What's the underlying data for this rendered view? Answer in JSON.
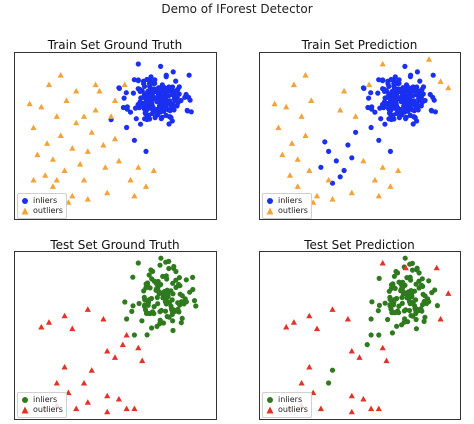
{
  "figure": {
    "title": "Demo of IForest Detector"
  },
  "colors": {
    "train_inlier": "#1a2ff0",
    "test_inlier": "#2f7a1f",
    "outlier_train": "#f2a43a",
    "outlier_test": "#e0342a",
    "frame": "#333333"
  },
  "chart_data": [
    {
      "type": "scatter",
      "title": "Train Set Ground Truth",
      "xlabel": "",
      "ylabel": "",
      "legend": {
        "placement": "bottom-left",
        "entries": [
          "inliers",
          "outliers"
        ]
      },
      "series": [
        {
          "name": "inliers",
          "marker": "circle",
          "cluster": {
            "cx": 0.72,
            "cy": 0.73,
            "sx": 0.07,
            "sy": 0.075,
            "n": 200,
            "seed": 11
          },
          "points": [
            [
              0.62,
              0.95
            ],
            [
              0.86,
              0.74
            ],
            [
              0.48,
              0.6
            ],
            [
              0.56,
              0.55
            ],
            [
              0.6,
              0.47
            ],
            [
              0.66,
              0.4
            ],
            [
              0.8,
              0.9
            ],
            [
              0.52,
              0.8
            ]
          ]
        },
        {
          "name": "outliers",
          "marker": "triangle",
          "points": [
            [
              0.08,
              0.55
            ],
            [
              0.12,
              0.68
            ],
            [
              0.15,
              0.45
            ],
            [
              0.2,
              0.62
            ],
            [
              0.18,
              0.35
            ],
            [
              0.22,
              0.5
            ],
            [
              0.25,
              0.72
            ],
            [
              0.28,
              0.42
            ],
            [
              0.3,
              0.58
            ],
            [
              0.1,
              0.38
            ],
            [
              0.14,
              0.25
            ],
            [
              0.18,
              0.18
            ],
            [
              0.24,
              0.28
            ],
            [
              0.32,
              0.32
            ],
            [
              0.34,
              0.22
            ],
            [
              0.38,
              0.52
            ],
            [
              0.4,
              0.66
            ],
            [
              0.42,
              0.78
            ],
            [
              0.44,
              0.44
            ],
            [
              0.48,
              0.62
            ],
            [
              0.28,
              0.12
            ],
            [
              0.36,
              0.1
            ],
            [
              0.45,
              0.3
            ],
            [
              0.52,
              0.34
            ],
            [
              0.58,
              0.22
            ],
            [
              0.62,
              0.3
            ],
            [
              0.66,
              0.18
            ],
            [
              0.6,
              0.12
            ],
            [
              0.06,
              0.7
            ],
            [
              0.16,
              0.82
            ],
            [
              0.22,
              0.88
            ],
            [
              0.4,
              0.82
            ],
            [
              0.5,
              0.72
            ],
            [
              0.55,
              0.82
            ],
            [
              0.34,
              0.62
            ],
            [
              0.26,
              0.08
            ],
            [
              0.2,
              0.22
            ],
            [
              0.12,
              0.1
            ],
            [
              0.7,
              0.28
            ],
            [
              0.46,
              0.14
            ],
            [
              0.5,
              0.48
            ],
            [
              0.36,
              0.4
            ],
            [
              0.3,
              0.78
            ],
            [
              0.08,
              0.22
            ]
          ]
        }
      ]
    },
    {
      "type": "scatter",
      "title": "Train Set Prediction",
      "xlabel": "",
      "ylabel": "",
      "legend": {
        "placement": "bottom-left",
        "entries": [
          "inliers",
          "outliers"
        ]
      },
      "series": [
        {
          "name": "inliers",
          "marker": "circle",
          "cluster": {
            "cx": 0.72,
            "cy": 0.73,
            "sx": 0.07,
            "sy": 0.075,
            "n": 200,
            "seed": 11
          },
          "points": [
            [
              0.34,
              0.4
            ],
            [
              0.38,
              0.34
            ],
            [
              0.42,
              0.28
            ],
            [
              0.46,
              0.36
            ],
            [
              0.4,
              0.24
            ],
            [
              0.36,
              0.2
            ],
            [
              0.3,
              0.3
            ],
            [
              0.44,
              0.44
            ],
            [
              0.32,
              0.46
            ],
            [
              0.48,
              0.52
            ],
            [
              0.56,
              0.55
            ],
            [
              0.6,
              0.47
            ],
            [
              0.66,
              0.4
            ],
            [
              0.52,
              0.8
            ],
            [
              0.8,
              0.9
            ]
          ]
        },
        {
          "name": "outliers",
          "marker": "triangle",
          "points": [
            [
              0.08,
              0.55
            ],
            [
              0.12,
              0.68
            ],
            [
              0.15,
              0.45
            ],
            [
              0.2,
              0.62
            ],
            [
              0.18,
              0.35
            ],
            [
              0.22,
              0.5
            ],
            [
              0.25,
              0.72
            ],
            [
              0.1,
              0.38
            ],
            [
              0.14,
              0.25
            ],
            [
              0.18,
              0.18
            ],
            [
              0.24,
              0.28
            ],
            [
              0.34,
              0.22
            ],
            [
              0.4,
              0.66
            ],
            [
              0.42,
              0.78
            ],
            [
              0.48,
              0.62
            ],
            [
              0.28,
              0.12
            ],
            [
              0.36,
              0.1
            ],
            [
              0.52,
              0.34
            ],
            [
              0.58,
              0.22
            ],
            [
              0.62,
              0.3
            ],
            [
              0.66,
              0.18
            ],
            [
              0.6,
              0.12
            ],
            [
              0.06,
              0.7
            ],
            [
              0.16,
              0.82
            ],
            [
              0.22,
              0.88
            ],
            [
              0.55,
              0.82
            ],
            [
              0.26,
              0.08
            ],
            [
              0.12,
              0.1
            ],
            [
              0.7,
              0.28
            ],
            [
              0.46,
              0.14
            ],
            [
              0.62,
              0.95
            ],
            [
              0.92,
              0.84
            ],
            [
              0.96,
              0.8
            ],
            [
              0.86,
              0.98
            ]
          ]
        }
      ]
    },
    {
      "type": "scatter",
      "title": "Test Set Ground Truth",
      "xlabel": "",
      "ylabel": "",
      "legend": {
        "placement": "bottom-left",
        "entries": [
          "inliers",
          "outliers"
        ]
      },
      "series": [
        {
          "name": "inliers",
          "marker": "circle",
          "cluster": {
            "cx": 0.74,
            "cy": 0.73,
            "sx": 0.07,
            "sy": 0.09,
            "n": 120,
            "seed": 23
          },
          "points": [
            [
              0.62,
              0.95
            ],
            [
              0.9,
              0.86
            ],
            [
              0.56,
              0.6
            ],
            [
              0.6,
              0.5
            ]
          ]
        },
        {
          "name": "outliers",
          "marker": "triangle",
          "points": [
            [
              0.12,
              0.55
            ],
            [
              0.16,
              0.58
            ],
            [
              0.24,
              0.62
            ],
            [
              0.28,
              0.54
            ],
            [
              0.36,
              0.66
            ],
            [
              0.44,
              0.6
            ],
            [
              0.46,
              0.4
            ],
            [
              0.5,
              0.36
            ],
            [
              0.38,
              0.28
            ],
            [
              0.24,
              0.3
            ],
            [
              0.2,
              0.2
            ],
            [
              0.26,
              0.14
            ],
            [
              0.2,
              0.06
            ],
            [
              0.3,
              0.04
            ],
            [
              0.36,
              0.08
            ],
            [
              0.46,
              0.12
            ],
            [
              0.52,
              0.1
            ],
            [
              0.56,
              0.04
            ],
            [
              0.6,
              0.04
            ],
            [
              0.34,
              0.2
            ],
            [
              0.56,
              0.5
            ],
            [
              0.54,
              0.44
            ],
            [
              0.62,
              0.42
            ],
            [
              0.64,
              0.34
            ],
            [
              0.46,
              0.02
            ],
            [
              0.14,
              0.04
            ]
          ]
        }
      ]
    },
    {
      "type": "scatter",
      "title": "Test Set Prediction",
      "xlabel": "",
      "ylabel": "",
      "legend": {
        "placement": "bottom-left",
        "entries": [
          "inliers",
          "outliers"
        ]
      },
      "series": [
        {
          "name": "inliers",
          "marker": "circle",
          "cluster": {
            "cx": 0.74,
            "cy": 0.73,
            "sx": 0.065,
            "sy": 0.085,
            "n": 115,
            "seed": 23
          },
          "points": [
            [
              0.56,
              0.6
            ],
            [
              0.6,
              0.5
            ],
            [
              0.36,
              0.28
            ],
            [
              0.34,
              0.2
            ],
            [
              0.56,
              0.5
            ],
            [
              0.54,
              0.44
            ]
          ]
        },
        {
          "name": "outliers",
          "marker": "triangle",
          "points": [
            [
              0.12,
              0.55
            ],
            [
              0.16,
              0.58
            ],
            [
              0.24,
              0.62
            ],
            [
              0.28,
              0.54
            ],
            [
              0.36,
              0.66
            ],
            [
              0.44,
              0.6
            ],
            [
              0.46,
              0.4
            ],
            [
              0.5,
              0.36
            ],
            [
              0.24,
              0.3
            ],
            [
              0.2,
              0.2
            ],
            [
              0.26,
              0.14
            ],
            [
              0.2,
              0.06
            ],
            [
              0.3,
              0.04
            ],
            [
              0.46,
              0.12
            ],
            [
              0.52,
              0.1
            ],
            [
              0.56,
              0.04
            ],
            [
              0.6,
              0.04
            ],
            [
              0.62,
              0.42
            ],
            [
              0.64,
              0.34
            ],
            [
              0.46,
              0.02
            ],
            [
              0.14,
              0.04
            ],
            [
              0.62,
              0.95
            ],
            [
              0.74,
              0.92
            ],
            [
              0.9,
              0.92
            ],
            [
              0.96,
              0.76
            ],
            [
              0.92,
              0.6
            ]
          ]
        }
      ]
    }
  ]
}
